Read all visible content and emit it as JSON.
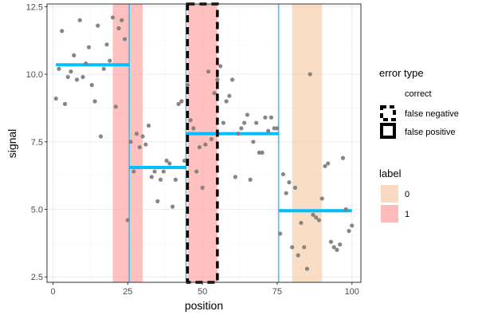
{
  "chart_data": {
    "type": "scatter",
    "xlabel": "position",
    "ylabel": "signal",
    "xlim": [
      -2,
      103
    ],
    "ylim": [
      2.3,
      12.6
    ],
    "x_ticks": [
      0,
      25,
      50,
      75,
      100
    ],
    "x_tick_labels": [
      "0",
      "25",
      "50",
      "75",
      "100"
    ],
    "y_ticks": [
      2.5,
      5.0,
      7.5,
      10.0,
      12.5
    ],
    "y_tick_labels": [
      "2.5",
      "5.0",
      "7.5",
      "10.0",
      "12.5"
    ],
    "grid": true,
    "label_regions": [
      {
        "label": "1",
        "xmin": 20,
        "xmax": 30
      },
      {
        "label": "1",
        "xmin": 45,
        "xmax": 55
      },
      {
        "label": "0",
        "xmin": 80,
        "xmax": 90
      }
    ],
    "changepoints": [
      25.5,
      44.5,
      75.5
    ],
    "segment_means": [
      {
        "xmin": 1,
        "xmax": 25.5,
        "y": 10.35
      },
      {
        "xmin": 25.5,
        "xmax": 44.5,
        "y": 6.55
      },
      {
        "xmin": 44.5,
        "xmax": 75.5,
        "y": 7.8
      },
      {
        "xmin": 75.5,
        "xmax": 100,
        "y": 4.95
      }
    ],
    "error_regions": [
      {
        "error_type": "false negative",
        "xmin": 45,
        "xmax": 55
      }
    ],
    "points": [
      [
        1,
        9.1
      ],
      [
        2,
        10.2
      ],
      [
        3,
        11.6
      ],
      [
        4,
        8.9
      ],
      [
        5,
        9.9
      ],
      [
        6,
        10.1
      ],
      [
        7,
        10.7
      ],
      [
        8,
        9.8
      ],
      [
        9,
        12.0
      ],
      [
        10,
        9.9
      ],
      [
        11,
        10.4
      ],
      [
        12,
        11.0
      ],
      [
        13,
        9.6
      ],
      [
        14,
        9.0
      ],
      [
        15,
        11.8
      ],
      [
        16,
        7.7
      ],
      [
        17,
        10.2
      ],
      [
        18,
        11.1
      ],
      [
        19,
        10.5
      ],
      [
        20,
        12.1
      ],
      [
        21,
        8.8
      ],
      [
        22,
        11.7
      ],
      [
        23,
        12.0
      ],
      [
        24,
        11.3
      ],
      [
        25,
        4.6
      ],
      [
        26,
        7.5
      ],
      [
        27,
        6.4
      ],
      [
        28,
        7.8
      ],
      [
        29,
        7.3
      ],
      [
        30,
        7.7
      ],
      [
        31,
        7.4
      ],
      [
        32,
        8.1
      ],
      [
        33,
        6.2
      ],
      [
        34,
        6.4
      ],
      [
        35,
        5.3
      ],
      [
        36,
        6.1
      ],
      [
        37,
        6.4
      ],
      [
        38,
        6.8
      ],
      [
        39,
        6.7
      ],
      [
        40,
        5.1
      ],
      [
        41,
        6.1
      ],
      [
        42,
        8.9
      ],
      [
        43,
        9.0
      ],
      [
        44,
        6.8
      ],
      [
        45,
        9.6
      ],
      [
        46,
        8.3
      ],
      [
        47,
        8.0
      ],
      [
        48,
        6.4
      ],
      [
        49,
        7.3
      ],
      [
        50,
        5.8
      ],
      [
        51,
        7.4
      ],
      [
        52,
        10.1
      ],
      [
        53,
        7.6
      ],
      [
        54,
        9.3
      ],
      [
        55,
        9.8
      ],
      [
        56,
        10.3
      ],
      [
        57,
        8.2
      ],
      [
        58,
        9.0
      ],
      [
        59,
        9.2
      ],
      [
        60,
        9.8
      ],
      [
        61,
        6.2
      ],
      [
        62,
        7.8
      ],
      [
        63,
        8.0
      ],
      [
        64,
        8.2
      ],
      [
        65,
        8.5
      ],
      [
        66,
        6.1
      ],
      [
        67,
        7.5
      ],
      [
        68,
        8.2
      ],
      [
        69,
        7.1
      ],
      [
        70,
        7.1
      ],
      [
        71,
        8.4
      ],
      [
        72,
        7.9
      ],
      [
        73,
        8.4
      ],
      [
        74,
        8.0
      ],
      [
        75,
        8.0
      ],
      [
        76,
        4.1
      ],
      [
        77,
        6.3
      ],
      [
        78,
        5.6
      ],
      [
        79,
        6.0
      ],
      [
        80,
        3.6
      ],
      [
        81,
        5.8
      ],
      [
        82,
        3.3
      ],
      [
        83,
        4.5
      ],
      [
        84,
        3.6
      ],
      [
        85,
        2.8
      ],
      [
        86,
        10.0
      ],
      [
        87,
        4.8
      ],
      [
        88,
        4.7
      ],
      [
        89,
        4.6
      ],
      [
        90,
        5.4
      ],
      [
        91,
        6.6
      ],
      [
        92,
        6.7
      ],
      [
        93,
        3.8
      ],
      [
        94,
        3.6
      ],
      [
        95,
        3.5
      ],
      [
        96,
        3.7
      ],
      [
        97,
        6.9
      ],
      [
        98,
        5.0
      ],
      [
        99,
        4.2
      ],
      [
        100,
        4.4
      ]
    ],
    "colors": {
      "points": "#7f7f7f",
      "segments": "#00bfff",
      "changepoints": "#00bfff",
      "label_0": "#f6cba6",
      "label_1": "#ff9e9e",
      "error_outline": "#000000"
    },
    "legend_placement": "right",
    "legends": {
      "error_type": {
        "title": "error type",
        "entries": [
          "correct",
          "false negative",
          "false positive"
        ]
      },
      "label": {
        "title": "label",
        "entries": [
          "0",
          "1"
        ]
      }
    }
  }
}
